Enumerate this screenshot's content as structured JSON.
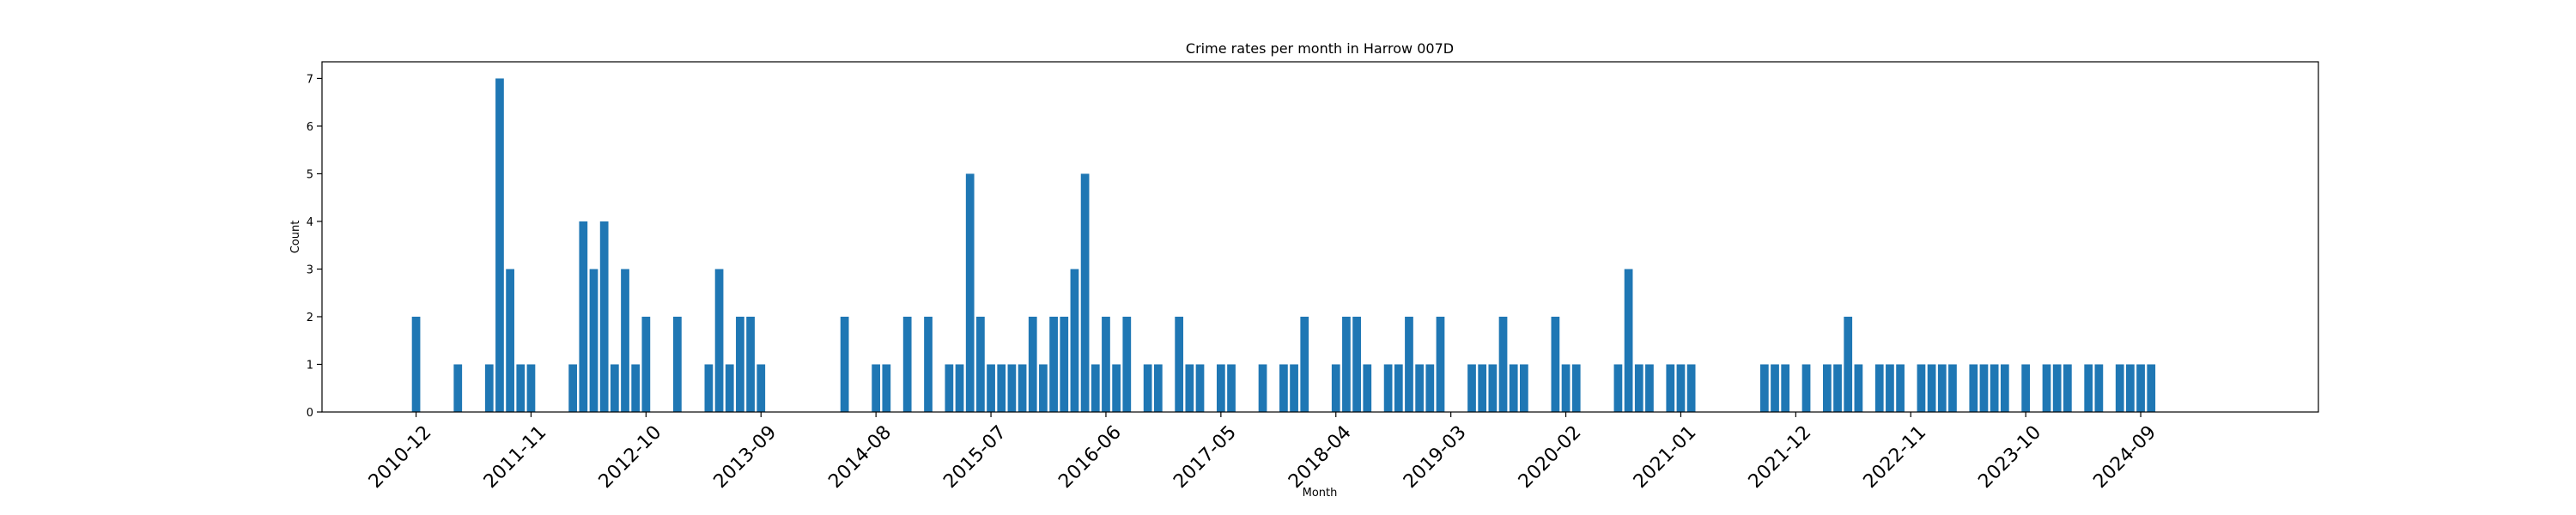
{
  "chart_data": {
    "type": "bar",
    "title": "Crime rates per month in Harrow 007D",
    "xlabel": "Month",
    "ylabel": "Count",
    "x_ticks": [
      "2010-12",
      "2011-11",
      "2012-10",
      "2013-09",
      "2014-08",
      "2015-07",
      "2016-06",
      "2017-05",
      "2018-04",
      "2019-03",
      "2020-02",
      "2021-01",
      "2021-12",
      "2022-11",
      "2023-10",
      "2024-09"
    ],
    "y_ticks": [
      "0",
      "1",
      "2",
      "3",
      "4",
      "5",
      "6",
      "7"
    ],
    "ylim": [
      0,
      7.35
    ],
    "xlim": [
      "2010-03",
      "2026-02"
    ],
    "grid": false,
    "bar_color": "#1f77b4",
    "categories": [
      "2010-12",
      "2011-04",
      "2011-07",
      "2011-08",
      "2011-09",
      "2011-10",
      "2011-11",
      "2012-03",
      "2012-04",
      "2012-05",
      "2012-06",
      "2012-07",
      "2012-08",
      "2012-09",
      "2012-10",
      "2013-01",
      "2013-04",
      "2013-05",
      "2013-06",
      "2013-07",
      "2013-08",
      "2013-09",
      "2014-05",
      "2014-08",
      "2014-09",
      "2014-11",
      "2015-01",
      "2015-03",
      "2015-04",
      "2015-05",
      "2015-06",
      "2015-07",
      "2015-08",
      "2015-09",
      "2015-10",
      "2015-11",
      "2015-12",
      "2016-01",
      "2016-02",
      "2016-03",
      "2016-04",
      "2016-05",
      "2016-06",
      "2016-07",
      "2016-08",
      "2016-10",
      "2016-11",
      "2017-01",
      "2017-02",
      "2017-03",
      "2017-05",
      "2017-06",
      "2017-09",
      "2017-11",
      "2017-12",
      "2018-01",
      "2018-04",
      "2018-05",
      "2018-06",
      "2018-07",
      "2018-09",
      "2018-10",
      "2018-11",
      "2018-12",
      "2019-01",
      "2019-02",
      "2019-05",
      "2019-06",
      "2019-07",
      "2019-08",
      "2019-09",
      "2019-10",
      "2020-01",
      "2020-02",
      "2020-03",
      "2020-07",
      "2020-08",
      "2020-09",
      "2020-10",
      "2020-12",
      "2021-01",
      "2021-02",
      "2021-09",
      "2021-10",
      "2021-11",
      "2022-01",
      "2022-03",
      "2022-04",
      "2022-05",
      "2022-06",
      "2022-08",
      "2022-09",
      "2022-10",
      "2022-12",
      "2023-01",
      "2023-02",
      "2023-03",
      "2023-05",
      "2023-06",
      "2023-07",
      "2023-08",
      "2023-10",
      "2023-12",
      "2024-01",
      "2024-02",
      "2024-04",
      "2024-05",
      "2024-07",
      "2024-08",
      "2024-09",
      "2024-10"
    ],
    "values": [
      2,
      1,
      1,
      7,
      3,
      1,
      1,
      1,
      4,
      3,
      4,
      1,
      3,
      1,
      2,
      2,
      1,
      3,
      1,
      2,
      2,
      1,
      2,
      1,
      1,
      2,
      2,
      1,
      1,
      5,
      2,
      1,
      1,
      1,
      1,
      2,
      1,
      2,
      2,
      3,
      5,
      1,
      2,
      1,
      2,
      1,
      1,
      2,
      1,
      1,
      1,
      1,
      1,
      1,
      1,
      2,
      1,
      2,
      2,
      1,
      1,
      1,
      2,
      1,
      1,
      2,
      1,
      1,
      1,
      2,
      1,
      1,
      2,
      1,
      1,
      1,
      3,
      1,
      1,
      1,
      1,
      1,
      1,
      1,
      1,
      1,
      1,
      1,
      2,
      1,
      1,
      1,
      1,
      1,
      1,
      1,
      1,
      1,
      1,
      1,
      1,
      1,
      1,
      1,
      1,
      1,
      1,
      1,
      1,
      1,
      1
    ]
  }
}
